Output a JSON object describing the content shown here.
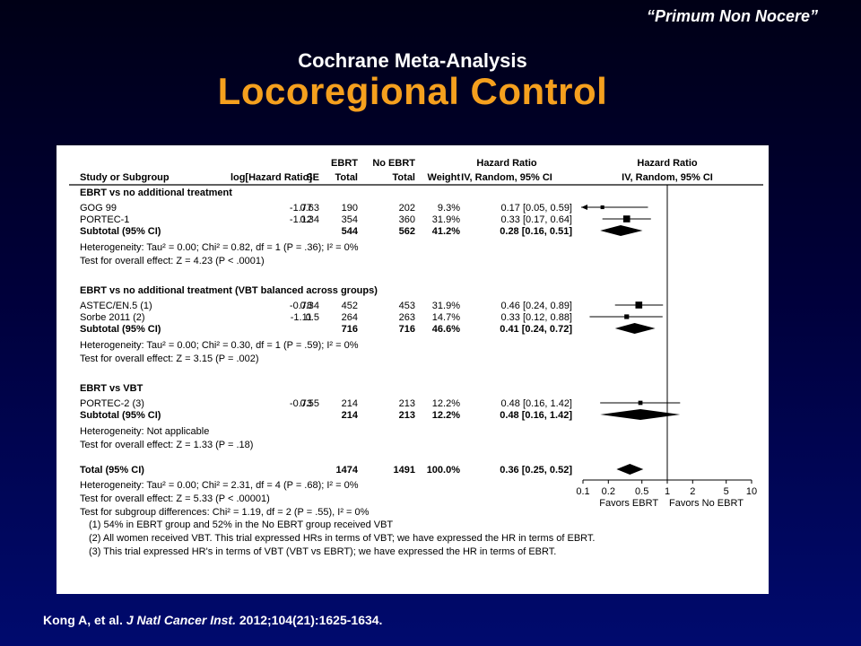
{
  "slide": {
    "quote": "“Primum Non Nocere”",
    "subtitle": "Cochrane Meta-Analysis",
    "title": "Locoregional Control",
    "citation": {
      "authors": "Kong A, et al.",
      "journal": "J Natl Cancer Inst.",
      "rest": "2012;104(21):1625-1634."
    }
  },
  "colors": {
    "title": "#f5a01e",
    "background": "#000a6e",
    "panel": "#ffffff"
  },
  "chart_data": {
    "type": "forest",
    "headers": {
      "ebrt_group": "EBRT",
      "no_ebrt_group": "No EBRT",
      "hr_group": "Hazard Ratio",
      "hr_plot_group": "Hazard Ratio",
      "study": "Study or Subgroup",
      "loghr": "log[Hazard Ratio]",
      "se": "SE",
      "ebrt_total": "Total",
      "no_ebrt_total": "Total",
      "weight": "Weight",
      "hr_ci": "IV, Random, 95% CI",
      "hr_plot": "IV, Random, 95% CI"
    },
    "subgroups": [
      {
        "name": "EBRT vs no additional treatment",
        "studies": [
          {
            "study": "GOG 99",
            "loghr": "-1.77",
            "se": "0.63",
            "ebrt": "190",
            "noebrt": "202",
            "weight": "9.3%",
            "ci_text": "0.17 [0.05, 0.59]",
            "hr": 0.17,
            "lo": 0.05,
            "hi": 0.59,
            "w": 9.3,
            "arrow_left": true
          },
          {
            "study": "PORTEC-1",
            "loghr": "-1.12",
            "se": "0.34",
            "ebrt": "354",
            "noebrt": "360",
            "weight": "31.9%",
            "ci_text": "0.33 [0.17, 0.64]",
            "hr": 0.33,
            "lo": 0.17,
            "hi": 0.64,
            "w": 31.9
          }
        ],
        "subtotal": {
          "label": "Subtotal (95% CI)",
          "ebrt": "544",
          "noebrt": "562",
          "weight": "41.2%",
          "ci_text": "0.28 [0.16, 0.51]",
          "hr": 0.28,
          "lo": 0.16,
          "hi": 0.51
        },
        "heterogeneity": "Heterogeneity: Tau² = 0.00; Chi² = 0.82, df = 1 (P = .36); I² = 0%",
        "overall": "Test for overall effect: Z = 4.23 (P < .0001)"
      },
      {
        "name": "EBRT vs no additional treatment (VBT balanced across groups)",
        "studies": [
          {
            "study": "ASTEC/EN.5 (1)",
            "loghr": "-0.78",
            "se": "0.34",
            "ebrt": "452",
            "noebrt": "453",
            "weight": "31.9%",
            "ci_text": "0.46 [0.24, 0.89]",
            "hr": 0.46,
            "lo": 0.24,
            "hi": 0.89,
            "w": 31.9
          },
          {
            "study": "Sorbe 2011 (2)",
            "loghr": "-1.11",
            "se": "0.5",
            "ebrt": "264",
            "noebrt": "263",
            "weight": "14.7%",
            "ci_text": "0.33 [0.12, 0.88]",
            "hr": 0.33,
            "lo": 0.12,
            "hi": 0.88,
            "w": 14.7
          }
        ],
        "subtotal": {
          "label": "Subtotal (95% CI)",
          "ebrt": "716",
          "noebrt": "716",
          "weight": "46.6%",
          "ci_text": "0.41 [0.24, 0.72]",
          "hr": 0.41,
          "lo": 0.24,
          "hi": 0.72
        },
        "heterogeneity": "Heterogeneity: Tau² = 0.00; Chi² = 0.30, df = 1 (P = .59); I² = 0%",
        "overall": "Test for overall effect: Z = 3.15 (P = .002)"
      },
      {
        "name": "EBRT vs VBT",
        "studies": [
          {
            "study": "PORTEC-2 (3)",
            "loghr": "-0.73",
            "se": "0.55",
            "ebrt": "214",
            "noebrt": "213",
            "weight": "12.2%",
            "ci_text": "0.48 [0.16, 1.42]",
            "hr": 0.48,
            "lo": 0.16,
            "hi": 1.42,
            "w": 12.2
          }
        ],
        "subtotal": {
          "label": "Subtotal (95% CI)",
          "ebrt": "214",
          "noebrt": "213",
          "weight": "12.2%",
          "ci_text": "0.48 [0.16, 1.42]",
          "hr": 0.48,
          "lo": 0.16,
          "hi": 1.42
        },
        "heterogeneity": "Heterogeneity: Not applicable",
        "overall": "Test for overall effect: Z = 1.33 (P = .18)"
      }
    ],
    "total": {
      "label": "Total (95% CI)",
      "ebrt": "1474",
      "noebrt": "1491",
      "weight": "100.0%",
      "ci_text": "0.36 [0.25, 0.52]",
      "hr": 0.36,
      "lo": 0.25,
      "hi": 0.52,
      "heterogeneity": "Heterogeneity: Tau² = 0.00; Chi² = 2.31, df = 4 (P = .68); I² = 0%",
      "overall": "Test for overall effect: Z = 5.33 (P < .00001)",
      "subgroup_diff": "Test for subgroup differences: Chi² = 1.19, df = 2 (P = .55), I² = 0%"
    },
    "footnotes": [
      "(1) 54% in EBRT group and 52% in the No EBRT group received VBT",
      "(2) All women received VBT. This trial expressed HRs in terms of VBT; we have expressed the HR in terms of EBRT.",
      "(3) This trial expressed HR's in terms of VBT (VBT vs EBRT); we have expressed the HR in terms of EBRT."
    ],
    "axis": {
      "scale": "log",
      "xlim": [
        0.1,
        10
      ],
      "ticks": [
        0.1,
        0.2,
        0.5,
        1,
        2,
        5,
        10
      ],
      "tick_labels": [
        "0.1",
        "0.2",
        "0.5",
        "1",
        "2",
        "5",
        "10"
      ],
      "favors_left": "Favors EBRT",
      "favors_right": "Favors No EBRT"
    }
  }
}
